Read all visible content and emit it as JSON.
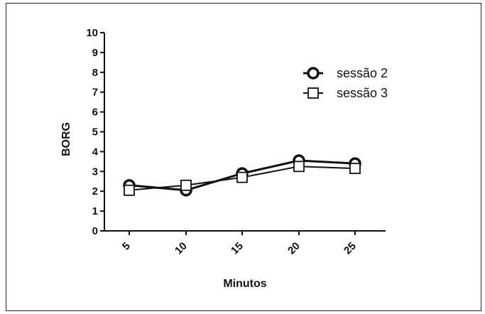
{
  "chart_data": {
    "type": "line",
    "x": [
      5,
      10,
      15,
      20,
      25
    ],
    "x_tick_labels": [
      "5",
      "10",
      "15",
      "20",
      "25"
    ],
    "y_tick_labels": [
      "0",
      "1",
      "2",
      "3",
      "4",
      "5",
      "6",
      "7",
      "8",
      "9",
      "10"
    ],
    "ylim": [
      0,
      10
    ],
    "xlabel": "Minutos",
    "ylabel": "BORG",
    "grid": false,
    "legend_position": "top-right",
    "series": [
      {
        "name": "sessão 2",
        "marker": "circle",
        "color": "#111111",
        "values": [
          2.3,
          2.05,
          2.9,
          3.55,
          3.4
        ]
      },
      {
        "name": "sessão 3",
        "marker": "square",
        "color": "#111111",
        "values": [
          2.05,
          2.3,
          2.7,
          3.25,
          3.15
        ]
      }
    ]
  }
}
